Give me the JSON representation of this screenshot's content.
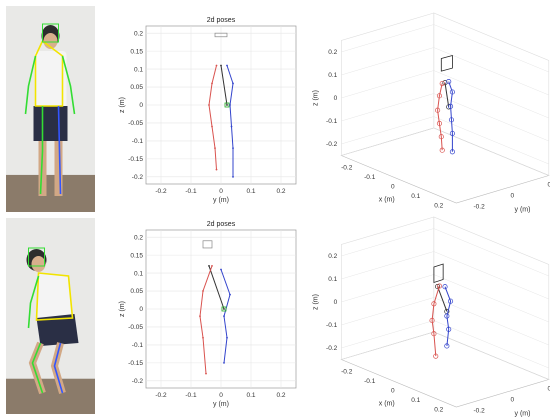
{
  "figure": {
    "colors": {
      "left_limb": "#d9534f",
      "right_limb": "#3344cc",
      "torso": "#333333",
      "head_box": "#222222",
      "mid_point": "#22aa22",
      "overlay_green": "#33dd33",
      "overlay_yellow": "#f2e400",
      "overlay_blue": "#3355ff",
      "grid": "#e6e6e6"
    },
    "icons": [
      "person-photo-standing",
      "person-photo-squatting"
    ]
  },
  "chart_data": [
    {
      "type": "scatter",
      "id": "top-2d",
      "title": "2d poses",
      "xlabel": "y (m)",
      "ylabel": "z (m)",
      "xlim": [
        -0.25,
        0.25
      ],
      "ylim": [
        -0.22,
        0.22
      ],
      "xticks": [
        "-0.2",
        "-0.1",
        "0",
        "0.1",
        "0.2"
      ],
      "yticks": [
        "0.2",
        "0.15",
        "0.1",
        "0.05",
        "0",
        "-0.05",
        "-0.1",
        "-0.15",
        "-0.2"
      ],
      "grid": true,
      "series": [
        {
          "part": "torso",
          "points": [
            [
              0.0,
              0.11
            ],
            [
              0.02,
              0.0
            ]
          ]
        },
        {
          "part": "left_limb",
          "points": [
            [
              -0.015,
              0.11
            ],
            [
              -0.03,
              0.06
            ],
            [
              -0.04,
              0.0
            ],
            [
              -0.03,
              -0.06
            ],
            [
              -0.02,
              -0.12
            ],
            [
              -0.015,
              -0.18
            ]
          ]
        },
        {
          "part": "right_limb",
          "points": [
            [
              0.02,
              0.11
            ],
            [
              0.04,
              0.06
            ],
            [
              0.03,
              0.0
            ],
            [
              0.035,
              -0.06
            ],
            [
              0.04,
              -0.12
            ],
            [
              0.04,
              -0.2
            ]
          ]
        },
        {
          "part": "head_box",
          "points": [
            [
              -0.02,
              0.2
            ],
            [
              0.02,
              0.19
            ]
          ]
        }
      ]
    },
    {
      "type": "scatter",
      "id": "bottom-2d",
      "title": "2d poses",
      "xlabel": "y (m)",
      "ylabel": "z (m)",
      "xlim": [
        -0.25,
        0.25
      ],
      "ylim": [
        -0.22,
        0.22
      ],
      "xticks": [
        "-0.2",
        "-0.1",
        "0",
        "0.1",
        "0.2"
      ],
      "yticks": [
        "0.2",
        "0.15",
        "0.1",
        "0.05",
        "0",
        "-0.05",
        "-0.1",
        "-0.15",
        "-0.2"
      ],
      "grid": true,
      "series": [
        {
          "part": "torso",
          "points": [
            [
              -0.04,
              0.12
            ],
            [
              0.01,
              0.0
            ]
          ]
        },
        {
          "part": "left_limb",
          "points": [
            [
              -0.03,
              0.12
            ],
            [
              -0.06,
              0.05
            ],
            [
              -0.07,
              -0.02
            ],
            [
              -0.06,
              -0.08
            ],
            [
              -0.05,
              -0.18
            ]
          ]
        },
        {
          "part": "right_limb",
          "points": [
            [
              0.0,
              0.11
            ],
            [
              0.03,
              0.04
            ],
            [
              0.01,
              -0.02
            ],
            [
              0.02,
              -0.08
            ],
            [
              0.01,
              -0.15
            ]
          ]
        },
        {
          "part": "head_box",
          "points": [
            [
              -0.06,
              0.19
            ],
            [
              -0.03,
              0.17
            ]
          ]
        }
      ]
    },
    {
      "type": "scatter",
      "id": "top-3d",
      "title": "",
      "xlabel": "x (m)",
      "ylabel": "y (m)",
      "zlabel": "z (m)",
      "xticks": [
        "-0.2",
        "-0.1",
        "0",
        "0.1",
        "0.2"
      ],
      "yticks": [
        "-0.2",
        "0",
        "0.2"
      ],
      "zticks": [
        "0.2",
        "0.1",
        "0",
        "-0.1",
        "-0.2"
      ],
      "grid": true
    },
    {
      "type": "scatter",
      "id": "bottom-3d",
      "title": "",
      "xlabel": "x (m)",
      "ylabel": "y (m)",
      "zlabel": "z (m)",
      "xticks": [
        "-0.2",
        "-0.1",
        "0",
        "0.1",
        "0.2"
      ],
      "yticks": [
        "-0.2",
        "0",
        "0.2"
      ],
      "zticks": [
        "0.2",
        "0.1",
        "0",
        "-0.1",
        "-0.2"
      ],
      "grid": true
    }
  ]
}
